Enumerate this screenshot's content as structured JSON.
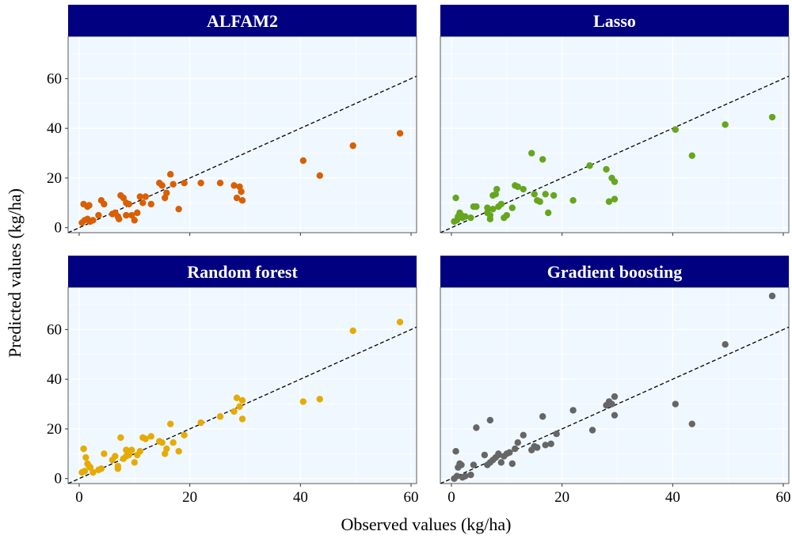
{
  "chart_data": {
    "type": "scatter",
    "xlabel": "Observed values (kg/ha)",
    "ylabel": "Predicted values (kg/ha)",
    "xlim": [
      -2,
      61
    ],
    "ylim": [
      -2,
      77
    ],
    "x_ticks": [
      0,
      20,
      40,
      60
    ],
    "y_ticks": [
      0,
      20,
      40,
      60
    ],
    "grid": true,
    "reference_line": {
      "style": "dashed",
      "slope": 1,
      "intercept": 0
    },
    "colors": {
      "strip_background": "#000080",
      "panel_background": "#f0f8ff",
      "grid": "#ffffff",
      "reference_line": "#000000"
    },
    "panels": [
      {
        "name": "ALFAM2",
        "color": "#d95f02",
        "points": [
          [
            0.8,
            9.5
          ],
          [
            1.5,
            8.5
          ],
          [
            1.8,
            9.0
          ],
          [
            0.5,
            2.0
          ],
          [
            1.0,
            3.0
          ],
          [
            1.5,
            3.5
          ],
          [
            2.0,
            2.5
          ],
          [
            2.5,
            3.0
          ],
          [
            3.5,
            5.0
          ],
          [
            4.0,
            11.0
          ],
          [
            4.5,
            9.5
          ],
          [
            6.0,
            5.5
          ],
          [
            6.5,
            6.0
          ],
          [
            7.0,
            4.5
          ],
          [
            7.2,
            3.5
          ],
          [
            7.5,
            13.0
          ],
          [
            8.0,
            12.0
          ],
          [
            8.5,
            5.0
          ],
          [
            8.5,
            10.0
          ],
          [
            9.0,
            9.5
          ],
          [
            9.5,
            5.0
          ],
          [
            10.0,
            3.0
          ],
          [
            10.5,
            6.0
          ],
          [
            11.0,
            12.5
          ],
          [
            11.5,
            10.0
          ],
          [
            12.0,
            12.5
          ],
          [
            13.0,
            9.5
          ],
          [
            14.5,
            18.0
          ],
          [
            15.0,
            17.0
          ],
          [
            15.5,
            12.0
          ],
          [
            15.8,
            14.0
          ],
          [
            16.5,
            21.5
          ],
          [
            17.0,
            17.5
          ],
          [
            18.0,
            7.5
          ],
          [
            19.0,
            18.0
          ],
          [
            22.0,
            18.0
          ],
          [
            25.5,
            18.0
          ],
          [
            28.0,
            17.0
          ],
          [
            28.5,
            12.0
          ],
          [
            29.0,
            16.5
          ],
          [
            29.3,
            14.5
          ],
          [
            29.5,
            11.0
          ],
          [
            40.5,
            27.0
          ],
          [
            43.5,
            21.0
          ],
          [
            49.5,
            33.0
          ],
          [
            58.0,
            38.0
          ]
        ]
      },
      {
        "name": "Lasso",
        "color": "#66a61e",
        "points": [
          [
            0.5,
            2.5
          ],
          [
            0.8,
            12.0
          ],
          [
            1.0,
            3.0
          ],
          [
            1.2,
            4.5
          ],
          [
            1.5,
            6.0
          ],
          [
            1.8,
            5.0
          ],
          [
            2.0,
            4.0
          ],
          [
            2.5,
            4.5
          ],
          [
            3.5,
            4.0
          ],
          [
            4.0,
            8.5
          ],
          [
            4.5,
            8.5
          ],
          [
            6.5,
            8.0
          ],
          [
            6.5,
            6.0
          ],
          [
            7.0,
            3.5
          ],
          [
            7.0,
            5.0
          ],
          [
            7.5,
            13.0
          ],
          [
            7.5,
            7.5
          ],
          [
            8.0,
            13.5
          ],
          [
            8.2,
            15.5
          ],
          [
            8.5,
            8.5
          ],
          [
            9.0,
            9.5
          ],
          [
            9.5,
            4.0
          ],
          [
            10.0,
            5.0
          ],
          [
            11.0,
            8.0
          ],
          [
            11.5,
            17.0
          ],
          [
            12.0,
            16.5
          ],
          [
            13.0,
            15.5
          ],
          [
            14.5,
            30.0
          ],
          [
            15.0,
            13.5
          ],
          [
            15.5,
            11.0
          ],
          [
            16.0,
            10.5
          ],
          [
            16.5,
            27.5
          ],
          [
            17.0,
            13.5
          ],
          [
            17.5,
            6.0
          ],
          [
            18.5,
            13.0
          ],
          [
            22.0,
            11.0
          ],
          [
            25.0,
            25.0
          ],
          [
            28.0,
            23.5
          ],
          [
            28.5,
            10.5
          ],
          [
            29.0,
            20.0
          ],
          [
            29.5,
            18.5
          ],
          [
            29.5,
            11.5
          ],
          [
            40.5,
            39.5
          ],
          [
            43.5,
            29.0
          ],
          [
            49.5,
            41.5
          ],
          [
            58.0,
            44.5
          ]
        ]
      },
      {
        "name": "Random forest",
        "color": "#e6ab02",
        "points": [
          [
            0.5,
            2.5
          ],
          [
            0.8,
            12.0
          ],
          [
            1.0,
            3.0
          ],
          [
            1.2,
            8.5
          ],
          [
            1.5,
            6.0
          ],
          [
            1.8,
            5.0
          ],
          [
            2.0,
            4.5
          ],
          [
            2.5,
            2.5
          ],
          [
            3.5,
            3.5
          ],
          [
            4.0,
            4.0
          ],
          [
            4.5,
            10.0
          ],
          [
            6.0,
            7.5
          ],
          [
            6.5,
            9.0
          ],
          [
            7.0,
            5.0
          ],
          [
            7.0,
            4.0
          ],
          [
            7.5,
            16.5
          ],
          [
            8.0,
            8.0
          ],
          [
            8.5,
            11.5
          ],
          [
            8.5,
            9.0
          ],
          [
            9.0,
            9.5
          ],
          [
            9.5,
            11.5
          ],
          [
            10.0,
            6.5
          ],
          [
            10.5,
            9.5
          ],
          [
            11.0,
            11.0
          ],
          [
            11.5,
            16.5
          ],
          [
            12.0,
            16.0
          ],
          [
            13.0,
            17.0
          ],
          [
            14.5,
            15.0
          ],
          [
            15.0,
            14.5
          ],
          [
            15.5,
            10.0
          ],
          [
            15.8,
            12.0
          ],
          [
            16.5,
            22.0
          ],
          [
            17.0,
            14.5
          ],
          [
            18.0,
            11.0
          ],
          [
            19.0,
            17.5
          ],
          [
            22.0,
            22.5
          ],
          [
            25.5,
            25.0
          ],
          [
            28.0,
            27.0
          ],
          [
            28.5,
            32.5
          ],
          [
            29.0,
            29.0
          ],
          [
            29.5,
            31.5
          ],
          [
            29.5,
            24.0
          ],
          [
            40.5,
            31.0
          ],
          [
            43.5,
            32.0
          ],
          [
            49.5,
            59.5
          ],
          [
            58.0,
            63.0
          ]
        ]
      },
      {
        "name": "Gradient boosting",
        "color": "#666666",
        "points": [
          [
            0.5,
            0.0
          ],
          [
            0.8,
            11.0
          ],
          [
            1.0,
            1.0
          ],
          [
            1.2,
            4.5
          ],
          [
            1.5,
            6.0
          ],
          [
            1.8,
            5.5
          ],
          [
            2.0,
            0.5
          ],
          [
            2.5,
            1.0
          ],
          [
            3.5,
            1.5
          ],
          [
            4.0,
            5.5
          ],
          [
            4.5,
            20.5
          ],
          [
            6.0,
            9.5
          ],
          [
            6.5,
            5.5
          ],
          [
            7.0,
            6.5
          ],
          [
            7.0,
            23.5
          ],
          [
            7.5,
            7.5
          ],
          [
            8.0,
            8.5
          ],
          [
            8.5,
            9.5
          ],
          [
            8.5,
            10.0
          ],
          [
            9.0,
            6.5
          ],
          [
            9.5,
            9.0
          ],
          [
            10.0,
            10.0
          ],
          [
            10.5,
            10.5
          ],
          [
            11.0,
            6.0
          ],
          [
            11.5,
            12.0
          ],
          [
            12.0,
            14.5
          ],
          [
            13.0,
            17.5
          ],
          [
            14.5,
            11.5
          ],
          [
            15.0,
            13.0
          ],
          [
            15.5,
            12.5
          ],
          [
            16.5,
            25.0
          ],
          [
            17.0,
            13.5
          ],
          [
            18.0,
            14.0
          ],
          [
            19.0,
            18.0
          ],
          [
            22.0,
            27.5
          ],
          [
            25.5,
            19.5
          ],
          [
            28.0,
            29.5
          ],
          [
            28.5,
            31.0
          ],
          [
            29.0,
            30.0
          ],
          [
            29.5,
            33.0
          ],
          [
            29.5,
            25.5
          ],
          [
            40.5,
            30.0
          ],
          [
            43.5,
            22.0
          ],
          [
            49.5,
            54.0
          ],
          [
            58.0,
            73.5
          ]
        ]
      }
    ]
  }
}
